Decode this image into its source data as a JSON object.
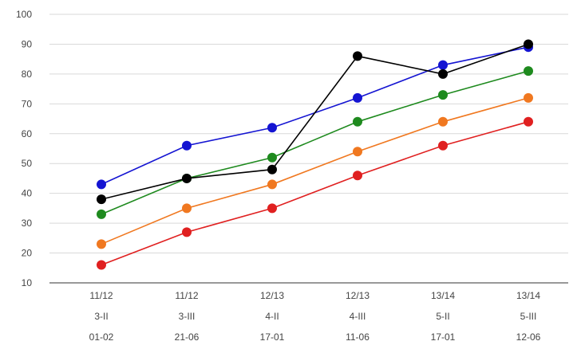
{
  "chart_data": {
    "type": "line",
    "title": "",
    "xlabel": "",
    "ylabel": "",
    "ylim": [
      10,
      100
    ],
    "yticks": [
      10,
      20,
      30,
      40,
      50,
      60,
      70,
      80,
      90,
      100
    ],
    "grid": true,
    "legend": "none",
    "categories": [
      [
        "11/12",
        "3-II",
        "01-02"
      ],
      [
        "11/12",
        "3-III",
        "21-06"
      ],
      [
        "12/13",
        "4-II",
        "17-01"
      ],
      [
        "12/13",
        "4-III",
        "11-06"
      ],
      [
        "13/14",
        "5-II",
        "17-01"
      ],
      [
        "13/14",
        "5-III",
        "12-06"
      ]
    ],
    "series": [
      {
        "color": "#e02020",
        "values": [
          16,
          27,
          35,
          46,
          56,
          64
        ]
      },
      {
        "color": "#f07820",
        "values": [
          23,
          35,
          43,
          54,
          64,
          72
        ]
      },
      {
        "color": "#1e8a1e",
        "values": [
          33,
          45,
          52,
          64,
          73,
          81
        ]
      },
      {
        "color": "#1414d2",
        "values": [
          43,
          56,
          62,
          72,
          83,
          89
        ]
      },
      {
        "color": "#000000",
        "values": [
          38,
          45,
          48,
          86,
          80,
          90
        ]
      }
    ]
  }
}
